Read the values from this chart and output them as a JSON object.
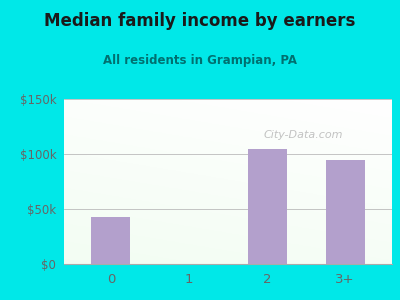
{
  "title": "Median family income by earners",
  "subtitle": "All residents in Grampian, PA",
  "categories": [
    "0",
    "1",
    "2",
    "3+"
  ],
  "values": [
    43000,
    0,
    105000,
    95000
  ],
  "bar_color": "#b3a0cc",
  "bar_color_edge": "#a090be",
  "background_outer": "#00e8e8",
  "title_color": "#1a1a1a",
  "subtitle_color": "#007070",
  "axis_label_color": "#666666",
  "ytick_labels": [
    "$0",
    "$50k",
    "$100k",
    "$150k"
  ],
  "ytick_values": [
    0,
    50000,
    100000,
    150000
  ],
  "ylim": [
    0,
    150000
  ],
  "watermark": "City-Data.com"
}
